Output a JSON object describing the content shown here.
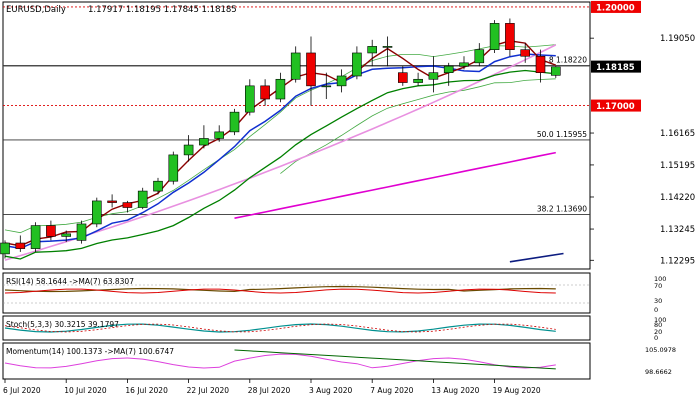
{
  "header": {
    "symbol": "EURUSD,Daily",
    "ohlc": "1.17917 1.18195 1.17845 1.18185"
  },
  "chart_data": {
    "type": "candlestick",
    "x_labels": [
      "6 Jul 2020",
      "10 Jul 2020",
      "16 Jul 2020",
      "22 Jul 2020",
      "28 Jul 2020",
      "3 Aug 2020",
      "7 Aug 2020",
      "13 Aug 2020",
      "19 Aug 2020"
    ],
    "x_label_index": [
      0,
      4,
      8,
      12,
      16,
      20,
      24,
      28,
      32
    ],
    "ylim": [
      1.1203,
      1.2015
    ],
    "y_ticks": [
      "1.19050",
      "1.18185",
      "1.17000",
      "1.16165",
      "1.15195",
      "1.14220",
      "1.13245",
      "1.12295"
    ],
    "y_tick_values": [
      1.1905,
      1.18185,
      1.17,
      1.16165,
      1.15195,
      1.1422,
      1.13245,
      1.12295
    ],
    "candles": [
      {
        "o": 1.1249,
        "h": 1.129,
        "l": 1.1235,
        "c": 1.1282
      },
      {
        "o": 1.1282,
        "h": 1.1305,
        "l": 1.1255,
        "c": 1.1265
      },
      {
        "o": 1.1265,
        "h": 1.1345,
        "l": 1.1255,
        "c": 1.1335
      },
      {
        "o": 1.1335,
        "h": 1.135,
        "l": 1.129,
        "c": 1.1302
      },
      {
        "o": 1.1302,
        "h": 1.132,
        "l": 1.1285,
        "c": 1.131
      },
      {
        "o": 1.129,
        "h": 1.135,
        "l": 1.128,
        "c": 1.134
      },
      {
        "o": 1.134,
        "h": 1.142,
        "l": 1.133,
        "c": 1.141
      },
      {
        "o": 1.141,
        "h": 1.143,
        "l": 1.139,
        "c": 1.1405
      },
      {
        "o": 1.1405,
        "h": 1.141,
        "l": 1.1375,
        "c": 1.139
      },
      {
        "o": 1.139,
        "h": 1.145,
        "l": 1.1385,
        "c": 1.144
      },
      {
        "o": 1.144,
        "h": 1.148,
        "l": 1.143,
        "c": 1.147
      },
      {
        "o": 1.147,
        "h": 1.156,
        "l": 1.146,
        "c": 1.155
      },
      {
        "o": 1.155,
        "h": 1.161,
        "l": 1.153,
        "c": 1.158
      },
      {
        "o": 1.158,
        "h": 1.164,
        "l": 1.157,
        "c": 1.16
      },
      {
        "o": 1.16,
        "h": 1.164,
        "l": 1.159,
        "c": 1.162
      },
      {
        "o": 1.162,
        "h": 1.169,
        "l": 1.161,
        "c": 1.168
      },
      {
        "o": 1.168,
        "h": 1.178,
        "l": 1.167,
        "c": 1.176
      },
      {
        "o": 1.176,
        "h": 1.178,
        "l": 1.17,
        "c": 1.172
      },
      {
        "o": 1.172,
        "h": 1.18,
        "l": 1.171,
        "c": 1.178
      },
      {
        "o": 1.178,
        "h": 1.188,
        "l": 1.177,
        "c": 1.186
      },
      {
        "o": 1.186,
        "h": 1.191,
        "l": 1.17,
        "c": 1.176
      },
      {
        "o": 1.176,
        "h": 1.18,
        "l": 1.172,
        "c": 1.176
      },
      {
        "o": 1.176,
        "h": 1.181,
        "l": 1.174,
        "c": 1.179
      },
      {
        "o": 1.179,
        "h": 1.188,
        "l": 1.178,
        "c": 1.186
      },
      {
        "o": 1.186,
        "h": 1.19,
        "l": 1.182,
        "c": 1.188
      },
      {
        "o": 1.188,
        "h": 1.191,
        "l": 1.182,
        "c": 1.188
      },
      {
        "o": 1.18,
        "h": 1.182,
        "l": 1.176,
        "c": 1.177
      },
      {
        "o": 1.177,
        "h": 1.18,
        "l": 1.176,
        "c": 1.178
      },
      {
        "o": 1.178,
        "h": 1.185,
        "l": 1.174,
        "c": 1.18
      },
      {
        "o": 1.18,
        "h": 1.183,
        "l": 1.176,
        "c": 1.182
      },
      {
        "o": 1.182,
        "h": 1.185,
        "l": 1.181,
        "c": 1.183
      },
      {
        "o": 1.183,
        "h": 1.189,
        "l": 1.182,
        "c": 1.187
      },
      {
        "o": 1.187,
        "h": 1.196,
        "l": 1.186,
        "c": 1.195
      },
      {
        "o": 1.195,
        "h": 1.1965,
        "l": 1.185,
        "c": 1.187
      },
      {
        "o": 1.187,
        "h": 1.189,
        "l": 1.183,
        "c": 1.185
      },
      {
        "o": 1.185,
        "h": 1.187,
        "l": 1.177,
        "c": 1.18
      },
      {
        "o": 1.1792,
        "h": 1.182,
        "l": 1.1784,
        "c": 1.1818
      }
    ],
    "hlines": [
      {
        "label": "1.20000",
        "value": 1.2,
        "style": "dotted-red-badge"
      },
      {
        "label": "61.8 1.18220",
        "value": 1.1822,
        "style": "fib"
      },
      {
        "label": "1.17000",
        "value": 1.17,
        "style": "dotted-red-badge"
      },
      {
        "label": "50.0 1.15955",
        "value": 1.15955,
        "style": "fib"
      },
      {
        "label": "38.2 1.13690",
        "value": 1.1369,
        "style": "fib"
      }
    ],
    "current_price": {
      "label": "1.18185",
      "value": 1.18185
    },
    "indicators": [
      {
        "name": "RSI",
        "header": "RSI(14) 58.1644 ->MA(7) 63.8307",
        "levels": [
          "100",
          "70",
          "30",
          "0"
        ]
      },
      {
        "name": "Stoch",
        "header": "Stoch(5,3,3) 30.3215 39.1797",
        "levels": [
          "100",
          "80",
          "20",
          "0"
        ]
      },
      {
        "name": "Momentum",
        "header": "Momentum(14) 100.1373 ->MA(7) 100.6747",
        "levels": [
          "105.0978",
          "98.6662"
        ]
      }
    ],
    "colors": {
      "bull": "#22c022",
      "bear": "#ee0000",
      "ma_darkred": "#8b0000",
      "ma_blue": "#1030d0",
      "ma_green": "#008000",
      "ma_pink": "#e890e0",
      "ma_magenta": "#e000d0",
      "ma_navy": "#0c1c80",
      "bb": "#44aa44"
    }
  }
}
